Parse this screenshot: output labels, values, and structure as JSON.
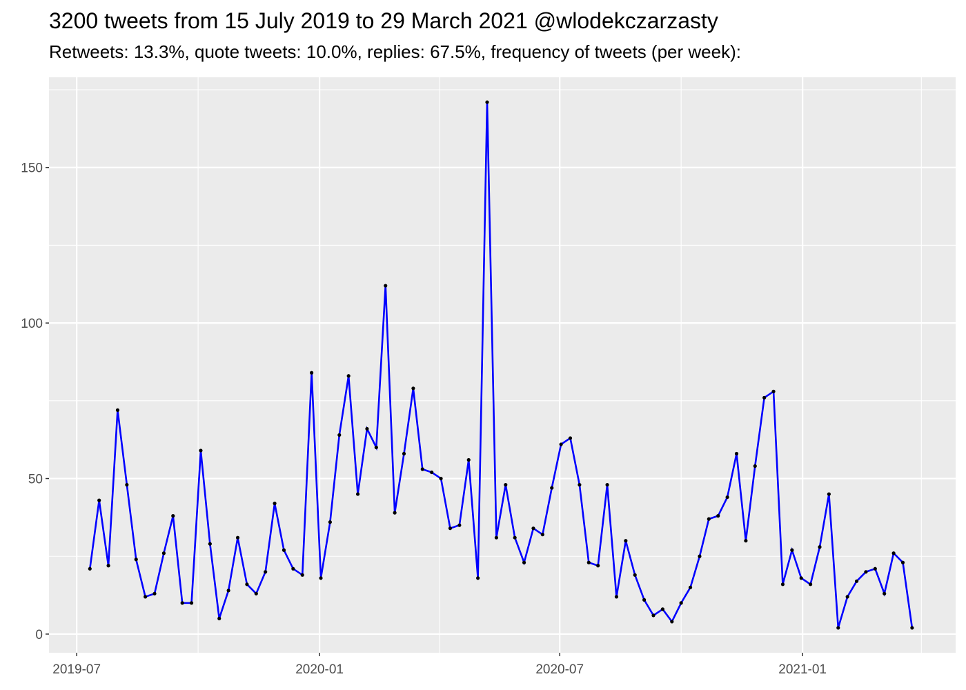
{
  "chart_data": {
    "type": "line",
    "title": "3200 tweets from 15 July 2019 to 29 March 2021 @wlodekczarzasty",
    "subtitle": "Retweets: 13.3%, quote tweets: 10.0%, replies: 67.5%, frequency of tweets (per week):",
    "xlabel": "",
    "ylabel": "",
    "x_start": "2019-07-11",
    "x_step_days": 7,
    "values": [
      21,
      43,
      22,
      72,
      48,
      24,
      12,
      13,
      26,
      38,
      10,
      10,
      59,
      29,
      5,
      14,
      31,
      16,
      13,
      20,
      42,
      27,
      21,
      19,
      84,
      18,
      36,
      64,
      83,
      45,
      66,
      60,
      112,
      39,
      58,
      79,
      53,
      52,
      50,
      34,
      35,
      56,
      18,
      171,
      31,
      48,
      31,
      23,
      34,
      32,
      47,
      61,
      63,
      48,
      23,
      22,
      48,
      12,
      30,
      19,
      11,
      6,
      8,
      4,
      10,
      15,
      25,
      37,
      38,
      44,
      58,
      30,
      54,
      76,
      78,
      16,
      27,
      18,
      16,
      28,
      45,
      2,
      12,
      17,
      20,
      21,
      13,
      26,
      23,
      2
    ],
    "xlim": [
      "2019-06-10",
      "2021-04-27"
    ],
    "ylim": [
      -6,
      179
    ],
    "x_ticks": [
      "2019-07",
      "2020-01",
      "2020-07",
      "2021-01"
    ],
    "y_ticks": [
      "0",
      "50",
      "100",
      "150"
    ],
    "grid": true,
    "line_color": "#0000ff",
    "point_color": "#000000",
    "panel_color": "#ebebeb"
  }
}
